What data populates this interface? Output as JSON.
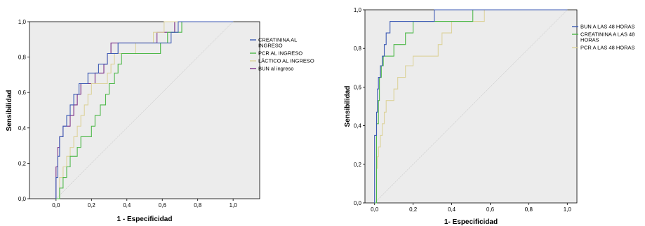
{
  "chart_data": [
    {
      "type": "line",
      "xlabel": "1 - Especificidad",
      "ylabel": "Sensibilidad",
      "xlim": [
        -0.15,
        1.15
      ],
      "ylim": [
        0,
        1
      ],
      "x_ticks": [
        "0,0",
        "0,2",
        "0,4",
        "0,6",
        "0,8",
        "1,0"
      ],
      "y_ticks": [
        "0,0",
        "0,2",
        "0,4",
        "0,6",
        "0,8",
        "1,0"
      ],
      "legend_position": "right",
      "grid": false,
      "series": [
        {
          "name": "CREATININA AL INGRESO",
          "color": "#3c5ab4",
          "points": [
            [
              0,
              0
            ],
            [
              0,
              0.12
            ],
            [
              0.01,
              0.12
            ],
            [
              0.01,
              0.24
            ],
            [
              0.02,
              0.24
            ],
            [
              0.02,
              0.35
            ],
            [
              0.04,
              0.35
            ],
            [
              0.04,
              0.41
            ],
            [
              0.06,
              0.41
            ],
            [
              0.06,
              0.47
            ],
            [
              0.08,
              0.47
            ],
            [
              0.08,
              0.53
            ],
            [
              0.1,
              0.53
            ],
            [
              0.1,
              0.59
            ],
            [
              0.13,
              0.59
            ],
            [
              0.13,
              0.65
            ],
            [
              0.18,
              0.65
            ],
            [
              0.18,
              0.71
            ],
            [
              0.24,
              0.71
            ],
            [
              0.24,
              0.76
            ],
            [
              0.29,
              0.76
            ],
            [
              0.29,
              0.82
            ],
            [
              0.35,
              0.82
            ],
            [
              0.35,
              0.88
            ],
            [
              0.65,
              0.88
            ],
            [
              0.65,
              0.94
            ],
            [
              0.69,
              0.94
            ],
            [
              0.69,
              1.0
            ],
            [
              1.0,
              1.0
            ]
          ]
        },
        {
          "name": "PCR AL INGRESO",
          "color": "#4db848",
          "points": [
            [
              0,
              0
            ],
            [
              0.02,
              0
            ],
            [
              0.02,
              0.06
            ],
            [
              0.04,
              0.06
            ],
            [
              0.04,
              0.12
            ],
            [
              0.06,
              0.12
            ],
            [
              0.06,
              0.18
            ],
            [
              0.08,
              0.18
            ],
            [
              0.08,
              0.24
            ],
            [
              0.12,
              0.24
            ],
            [
              0.12,
              0.29
            ],
            [
              0.14,
              0.29
            ],
            [
              0.14,
              0.35
            ],
            [
              0.2,
              0.35
            ],
            [
              0.2,
              0.41
            ],
            [
              0.22,
              0.41
            ],
            [
              0.22,
              0.47
            ],
            [
              0.25,
              0.47
            ],
            [
              0.25,
              0.53
            ],
            [
              0.28,
              0.53
            ],
            [
              0.28,
              0.59
            ],
            [
              0.3,
              0.59
            ],
            [
              0.3,
              0.65
            ],
            [
              0.33,
              0.65
            ],
            [
              0.33,
              0.71
            ],
            [
              0.35,
              0.71
            ],
            [
              0.35,
              0.76
            ],
            [
              0.37,
              0.76
            ],
            [
              0.37,
              0.82
            ],
            [
              0.59,
              0.82
            ],
            [
              0.59,
              0.88
            ],
            [
              0.63,
              0.88
            ],
            [
              0.63,
              0.94
            ],
            [
              0.71,
              0.94
            ],
            [
              0.71,
              1.0
            ],
            [
              1.0,
              1.0
            ]
          ]
        },
        {
          "name": "LÁCTICO AL INGRESO",
          "color": "#dcd29a",
          "points": [
            [
              0,
              0
            ],
            [
              0.02,
              0
            ],
            [
              0.02,
              0.12
            ],
            [
              0.04,
              0.12
            ],
            [
              0.04,
              0.18
            ],
            [
              0.06,
              0.18
            ],
            [
              0.06,
              0.24
            ],
            [
              0.08,
              0.24
            ],
            [
              0.08,
              0.29
            ],
            [
              0.1,
              0.29
            ],
            [
              0.1,
              0.35
            ],
            [
              0.12,
              0.35
            ],
            [
              0.12,
              0.41
            ],
            [
              0.14,
              0.41
            ],
            [
              0.14,
              0.47
            ],
            [
              0.16,
              0.47
            ],
            [
              0.16,
              0.53
            ],
            [
              0.18,
              0.53
            ],
            [
              0.18,
              0.59
            ],
            [
              0.2,
              0.59
            ],
            [
              0.2,
              0.65
            ],
            [
              0.29,
              0.65
            ],
            [
              0.29,
              0.71
            ],
            [
              0.31,
              0.71
            ],
            [
              0.31,
              0.76
            ],
            [
              0.33,
              0.76
            ],
            [
              0.33,
              0.82
            ],
            [
              0.45,
              0.82
            ],
            [
              0.45,
              0.88
            ],
            [
              0.55,
              0.88
            ],
            [
              0.55,
              0.94
            ],
            [
              0.61,
              0.94
            ],
            [
              0.61,
              1.0
            ],
            [
              1.0,
              1.0
            ]
          ]
        },
        {
          "name": "BUN al ingreso",
          "color": "#7a2f88",
          "points": [
            [
              0,
              0
            ],
            [
              0,
              0.18
            ],
            [
              0.01,
              0.18
            ],
            [
              0.01,
              0.29
            ],
            [
              0.02,
              0.29
            ],
            [
              0.02,
              0.35
            ],
            [
              0.04,
              0.35
            ],
            [
              0.04,
              0.41
            ],
            [
              0.08,
              0.41
            ],
            [
              0.08,
              0.47
            ],
            [
              0.1,
              0.47
            ],
            [
              0.1,
              0.53
            ],
            [
              0.12,
              0.53
            ],
            [
              0.12,
              0.59
            ],
            [
              0.14,
              0.59
            ],
            [
              0.14,
              0.65
            ],
            [
              0.22,
              0.65
            ],
            [
              0.22,
              0.71
            ],
            [
              0.27,
              0.71
            ],
            [
              0.27,
              0.76
            ],
            [
              0.29,
              0.76
            ],
            [
              0.29,
              0.82
            ],
            [
              0.31,
              0.82
            ],
            [
              0.31,
              0.88
            ],
            [
              0.57,
              0.88
            ],
            [
              0.57,
              0.94
            ],
            [
              0.67,
              0.94
            ],
            [
              0.67,
              1.0
            ],
            [
              1.0,
              1.0
            ]
          ]
        }
      ]
    },
    {
      "type": "line",
      "xlabel": "1- Especificidad",
      "ylabel": "Sensibilidad",
      "xlim": [
        -0.05,
        1.05
      ],
      "ylim": [
        0,
        1
      ],
      "x_ticks": [
        "0,0",
        "0,2",
        "0,4",
        "0,6",
        "0,8",
        "1,0"
      ],
      "y_ticks": [
        "0,0",
        "0,2",
        "0,4",
        "0,6",
        "0,8",
        "1,0"
      ],
      "legend_position": "right",
      "grid": false,
      "series": [
        {
          "name": "BUN A LAS 48 HORAS",
          "color": "#3c5ab4",
          "points": [
            [
              0,
              0
            ],
            [
              0,
              0.35
            ],
            [
              0.01,
              0.35
            ],
            [
              0.01,
              0.47
            ],
            [
              0.015,
              0.47
            ],
            [
              0.015,
              0.59
            ],
            [
              0.02,
              0.59
            ],
            [
              0.02,
              0.65
            ],
            [
              0.03,
              0.65
            ],
            [
              0.03,
              0.71
            ],
            [
              0.04,
              0.71
            ],
            [
              0.04,
              0.76
            ],
            [
              0.05,
              0.76
            ],
            [
              0.05,
              0.82
            ],
            [
              0.06,
              0.82
            ],
            [
              0.06,
              0.88
            ],
            [
              0.08,
              0.88
            ],
            [
              0.08,
              0.94
            ],
            [
              0.31,
              0.94
            ],
            [
              0.31,
              1.0
            ],
            [
              1.0,
              1.0
            ]
          ]
        },
        {
          "name": "CREATININA A LAS 48 HORAS",
          "color": "#4db848",
          "points": [
            [
              0,
              0
            ],
            [
              0.01,
              0
            ],
            [
              0.01,
              0.41
            ],
            [
              0.02,
              0.41
            ],
            [
              0.02,
              0.53
            ],
            [
              0.025,
              0.53
            ],
            [
              0.025,
              0.65
            ],
            [
              0.035,
              0.65
            ],
            [
              0.035,
              0.71
            ],
            [
              0.045,
              0.71
            ],
            [
              0.045,
              0.76
            ],
            [
              0.1,
              0.76
            ],
            [
              0.1,
              0.82
            ],
            [
              0.16,
              0.82
            ],
            [
              0.16,
              0.88
            ],
            [
              0.2,
              0.88
            ],
            [
              0.2,
              0.94
            ],
            [
              0.51,
              0.94
            ],
            [
              0.51,
              1.0
            ],
            [
              1.0,
              1.0
            ]
          ]
        },
        {
          "name": "PCR A LAS 48 HORAS",
          "color": "#dcd29a",
          "points": [
            [
              0,
              0
            ],
            [
              0.01,
              0
            ],
            [
              0.01,
              0.18
            ],
            [
              0.015,
              0.18
            ],
            [
              0.015,
              0.24
            ],
            [
              0.02,
              0.24
            ],
            [
              0.02,
              0.29
            ],
            [
              0.03,
              0.29
            ],
            [
              0.03,
              0.35
            ],
            [
              0.04,
              0.35
            ],
            [
              0.04,
              0.41
            ],
            [
              0.05,
              0.41
            ],
            [
              0.05,
              0.47
            ],
            [
              0.06,
              0.47
            ],
            [
              0.06,
              0.53
            ],
            [
              0.1,
              0.53
            ],
            [
              0.1,
              0.59
            ],
            [
              0.12,
              0.59
            ],
            [
              0.12,
              0.65
            ],
            [
              0.16,
              0.65
            ],
            [
              0.16,
              0.71
            ],
            [
              0.2,
              0.71
            ],
            [
              0.2,
              0.76
            ],
            [
              0.33,
              0.76
            ],
            [
              0.33,
              0.82
            ],
            [
              0.35,
              0.82
            ],
            [
              0.35,
              0.88
            ],
            [
              0.4,
              0.88
            ],
            [
              0.4,
              0.94
            ],
            [
              0.57,
              0.94
            ],
            [
              0.57,
              1.0
            ],
            [
              1.0,
              1.0
            ]
          ]
        }
      ]
    }
  ]
}
